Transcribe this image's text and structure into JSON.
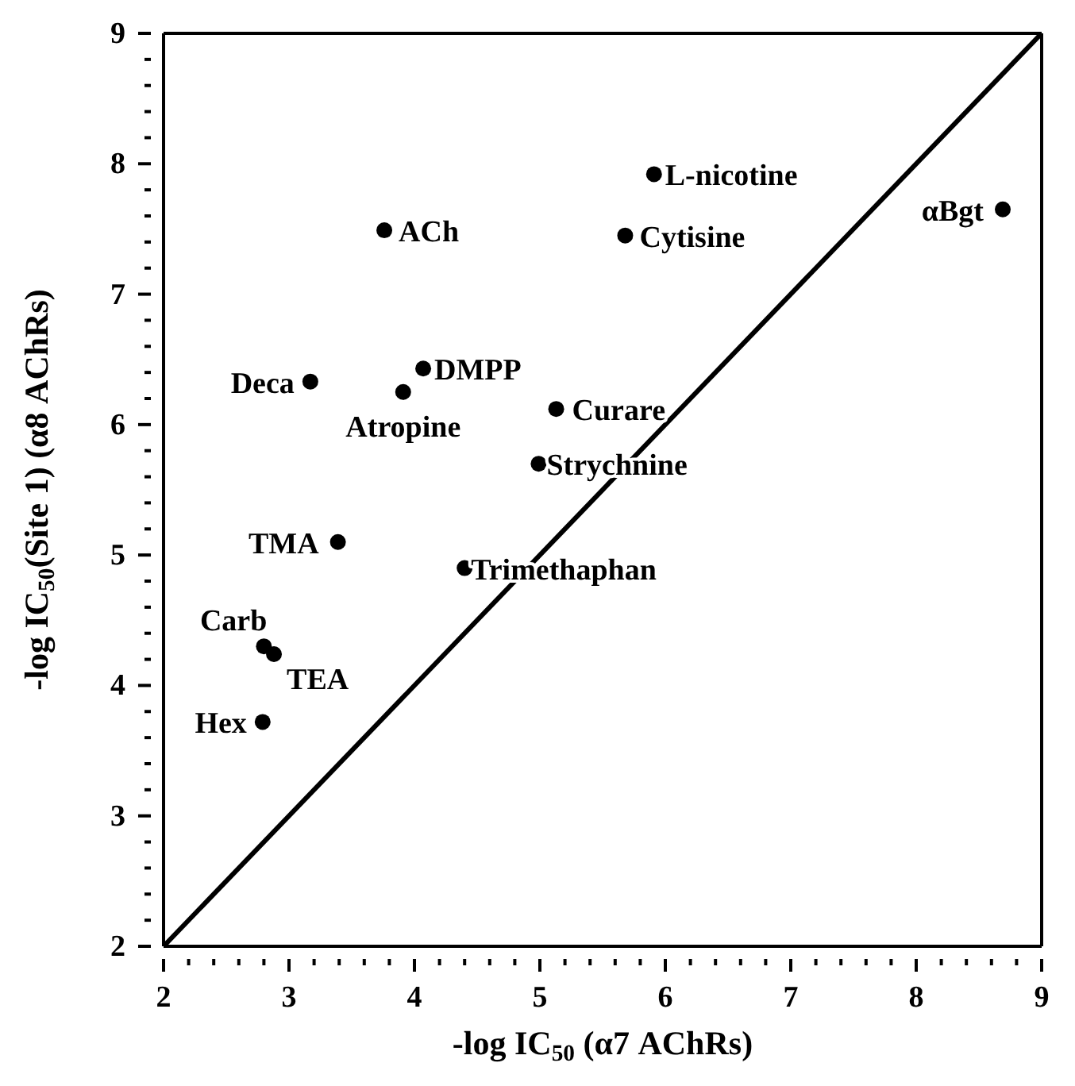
{
  "chart_data": {
    "type": "scatter",
    "xlabel": "-log IC$_{50}$ (α7 AChRs)",
    "ylabel": "-log IC$_{50}$(Site 1) (α8 AChRs)",
    "xlim": [
      2,
      9
    ],
    "ylim": [
      2,
      9
    ],
    "xticks": [
      2,
      {
        "value": 2.2,
        "label": null
      },
      {
        "value": 2.4,
        "label": null
      },
      {
        "value": 2.6,
        "label": null
      },
      {
        "value": 2.8,
        "label": null
      },
      3,
      {
        "value": 3.2,
        "label": null
      },
      {
        "value": 3.4,
        "label": null
      },
      {
        "value": 3.6,
        "label": null
      },
      {
        "value": 3.8,
        "label": null
      },
      4,
      {
        "value": 4.2,
        "label": null
      },
      {
        "value": 4.4,
        "label": null
      },
      {
        "value": 4.6,
        "label": null
      },
      {
        "value": 4.8,
        "label": null
      },
      5,
      {
        "value": 5.2,
        "label": null
      },
      {
        "value": 5.4,
        "label": null
      },
      {
        "value": 5.6,
        "label": null
      },
      {
        "value": 5.8,
        "label": null
      },
      6,
      {
        "value": 6.2,
        "label": null
      },
      {
        "value": 6.4,
        "label": null
      },
      {
        "value": 6.6,
        "label": null
      },
      {
        "value": 6.8,
        "label": null
      },
      7,
      {
        "value": 7.2,
        "label": null
      },
      {
        "value": 7.4,
        "label": null
      },
      {
        "value": 7.6,
        "label": null
      },
      {
        "value": 7.8,
        "label": null
      },
      8,
      {
        "value": 8.2,
        "label": null
      },
      {
        "value": 8.4,
        "label": null
      },
      {
        "value": 8.6,
        "label": null
      },
      {
        "value": 8.8,
        "label": null
      },
      9
    ],
    "yticks": [
      2,
      {
        "value": 2.2,
        "label": null
      },
      {
        "value": 2.4,
        "label": null
      },
      {
        "value": 2.6,
        "label": null
      },
      {
        "value": 2.8,
        "label": null
      },
      3,
      {
        "value": 3.2,
        "label": null
      },
      {
        "value": 3.4,
        "label": null
      },
      {
        "value": 3.6,
        "label": null
      },
      {
        "value": 3.8,
        "label": null
      },
      4,
      {
        "value": 4.2,
        "label": null
      },
      {
        "value": 4.4,
        "label": null
      },
      {
        "value": 4.6,
        "label": null
      },
      {
        "value": 4.8,
        "label": null
      },
      5,
      {
        "value": 5.2,
        "label": null
      },
      {
        "value": 5.4,
        "label": null
      },
      {
        "value": 5.6,
        "label": null
      },
      {
        "value": 5.8,
        "label": null
      },
      6,
      {
        "value": 6.2,
        "label": null
      },
      {
        "value": 6.4,
        "label": null
      },
      {
        "value": 6.6,
        "label": null
      },
      {
        "value": 6.8,
        "label": null
      },
      7,
      {
        "value": 7.2,
        "label": null
      },
      {
        "value": 7.4,
        "label": null
      },
      {
        "value": 7.6,
        "label": null
      },
      {
        "value": 7.8,
        "label": null
      },
      8,
      {
        "value": 8.2,
        "label": null
      },
      {
        "value": 8.4,
        "label": null
      },
      {
        "value": 8.6,
        "label": null
      },
      {
        "value": 8.8,
        "label": null
      },
      9
    ],
    "line_style": "solid",
    "series": [
      {
        "color": "#000000",
        "marker": "circle",
        "x": [
          3.76,
          5.91,
          5.68,
          8.69,
          3.17,
          4.07,
          3.91,
          5.13,
          4.99,
          3.39,
          4.4,
          2.8,
          2.88,
          2.79
        ],
        "values": [
          7.49,
          7.92,
          7.45,
          7.65,
          6.33,
          6.43,
          6.25,
          6.12,
          5.7,
          5.1,
          4.9,
          4.3,
          4.24,
          3.72
        ]
      },
      {
        "type": "line",
        "color": "#000000",
        "x": [
          2,
          9
        ],
        "values": [
          2,
          9
        ]
      }
    ],
    "annotations": [
      {
        "text": "ACh",
        "x": 3.76,
        "y": 7.49
      },
      {
        "text": "L-nicotine",
        "x": 5.91,
        "y": 7.92
      },
      {
        "text": "Cytisine",
        "x": 5.68,
        "y": 7.45
      },
      {
        "text": "αBgt",
        "x": 8.69,
        "y": 7.65
      },
      {
        "text": "Deca",
        "x": 3.17,
        "y": 6.33
      },
      {
        "text": "DMPP",
        "x": 4.07,
        "y": 6.43
      },
      {
        "text": "Atropine",
        "x": 3.91,
        "y": 6.25
      },
      {
        "text": "Curare",
        "x": 5.13,
        "y": 6.12
      },
      {
        "text": "Strychnine",
        "x": 4.99,
        "y": 5.7
      },
      {
        "text": "TMA",
        "x": 3.39,
        "y": 5.1
      },
      {
        "text": "Trimethaphan",
        "x": 4.4,
        "y": 4.9
      },
      {
        "text": "Carb",
        "x": 2.8,
        "y": 4.3
      },
      {
        "text": "TEA",
        "x": 2.88,
        "y": 4.24
      },
      {
        "text": "Hex",
        "x": 2.79,
        "y": 3.72
      }
    ]
  }
}
